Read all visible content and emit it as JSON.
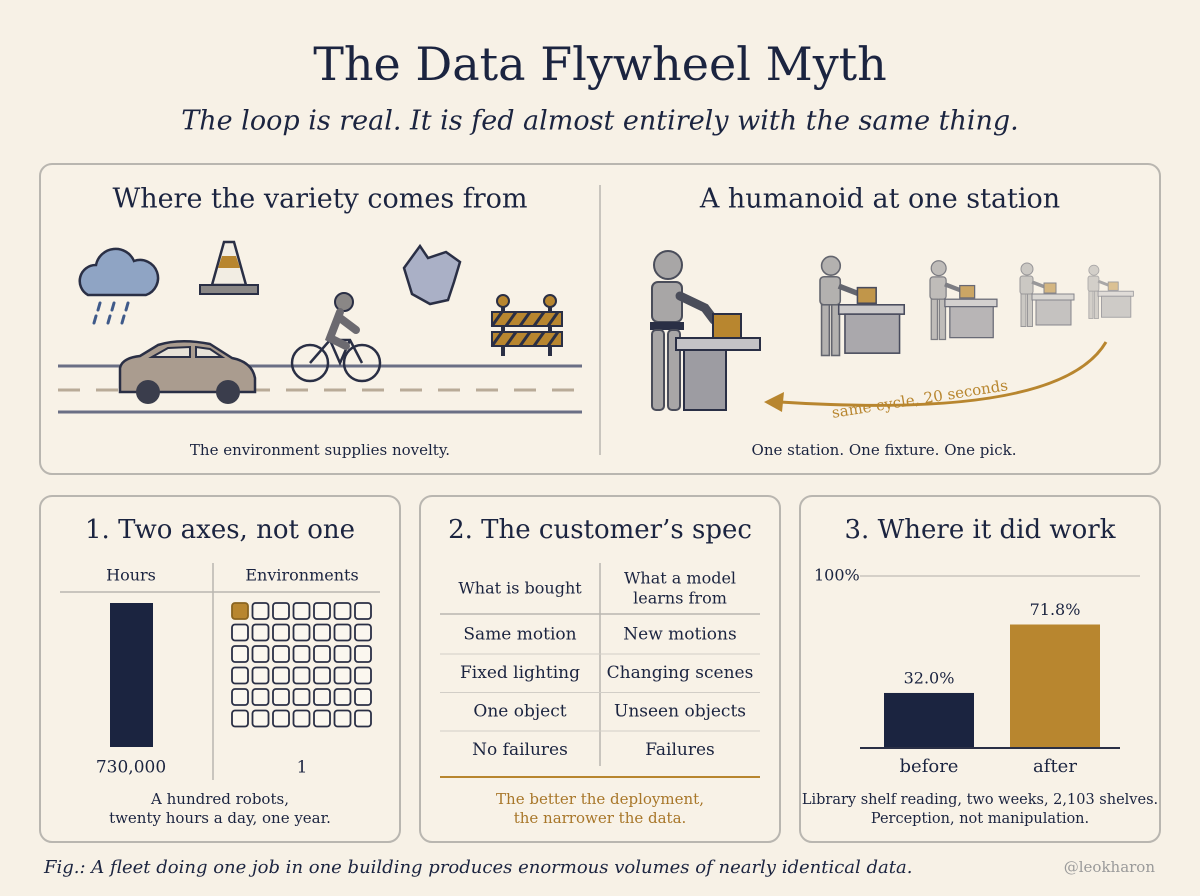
{
  "header": {
    "title": "The Data Flywheel Myth",
    "subtitle": "The loop is real. It is fed almost entirely with the same thing."
  },
  "top_panels": [
    {
      "heading": "Where the variety comes from",
      "caption": "The environment supplies novelty."
    },
    {
      "heading": "A humanoid at one station",
      "annotation": "same cycle, 20 seconds",
      "caption": "One station. One fixture. One pick."
    }
  ],
  "axes_panel": {
    "heading": "1. Two axes, not one",
    "columns": [
      "Hours",
      "Environments"
    ],
    "totals": [
      "730,000",
      "1"
    ],
    "caption": [
      "A hundred robots,",
      "twenty hours a day, one year."
    ]
  },
  "spec_panel": {
    "heading": "2. The customer’s spec",
    "header_lines": [
      [
        "What is bought"
      ],
      [
        "What a model",
        "learns from"
      ]
    ],
    "rows": [
      [
        "Same motion",
        "New motions"
      ],
      [
        "Fixed lighting",
        "Changing scenes"
      ],
      [
        "One object",
        "Unseen objects"
      ],
      [
        "No failures",
        "Failures"
      ]
    ],
    "caption": [
      "The better the deployment,",
      "the narrower the data."
    ]
  },
  "chart_data": {
    "type": "bar",
    "title": "3. Where it did work",
    "categories": [
      "before",
      "after"
    ],
    "values": [
      32.0,
      71.8
    ],
    "value_labels": [
      "32.0%",
      "71.8%"
    ],
    "colors": [
      "#1b2440",
      "#b8862f"
    ],
    "ylim": [
      0,
      100
    ],
    "yticks": [
      {
        "value": 100,
        "label": "100%"
      }
    ],
    "grid": true,
    "caption": [
      "Library shelf reading, two weeks, 2,103 shelves.",
      "Perception, not manipulation."
    ]
  },
  "footer": {
    "caption": "Fig.: A fleet doing one job in one building produces enormous volumes of nearly identical data.",
    "credit": "@leokharon"
  }
}
